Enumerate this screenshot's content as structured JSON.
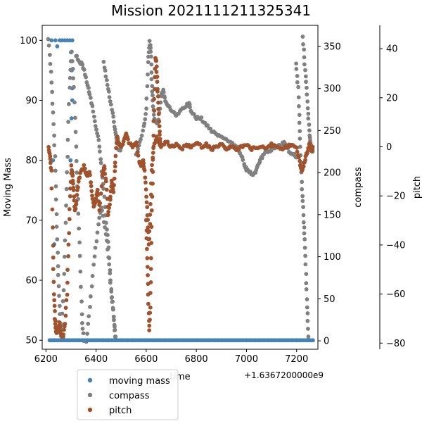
{
  "chart_data": {
    "type": "scatter",
    "title": "Mission 2021111211325341",
    "xlabel": "time",
    "x_offset_label": "+1.6367200000e9",
    "x_ticks": [
      6200,
      6400,
      6600,
      6800,
      7000,
      7200
    ],
    "xlim": [
      6185,
      7285
    ],
    "axes": {
      "moving_mass": {
        "label": "Moving Mass",
        "ylim": [
          48.5,
          102.5
        ],
        "ticks": [
          50,
          60,
          70,
          80,
          90,
          100
        ]
      },
      "compass": {
        "label": "compass",
        "ylim": [
          -10,
          375
        ],
        "ticks": [
          0,
          50,
          100,
          150,
          200,
          250,
          300,
          350
        ]
      },
      "pitch": {
        "label": "pitch",
        "ylim": [
          -82.5,
          49.5
        ],
        "ticks": [
          -80,
          -60,
          -40,
          -20,
          0,
          20,
          40
        ]
      }
    },
    "legend_placement": "below-left",
    "series": [
      {
        "name": "moving mass",
        "color": "#4682b4",
        "axis": "moving_mass",
        "points": [
          [
            6215,
            50
          ],
          [
            6222,
            100
          ],
          [
            6228,
            80
          ],
          [
            6233,
            66
          ],
          [
            6238,
            100
          ],
          [
            6245,
            99
          ],
          [
            6255,
            100
          ],
          [
            6265,
            100
          ],
          [
            6275,
            100
          ],
          [
            6285,
            100
          ],
          [
            6295,
            100
          ],
          [
            6305,
            100
          ],
          [
            6300,
            98
          ],
          [
            6303,
            95
          ],
          [
            6305,
            90
          ],
          [
            6302,
            87
          ],
          [
            6298,
            80
          ],
          [
            6306,
            78
          ],
          [
            6305,
            92
          ],
          [
            6235,
            50
          ],
          [
            6260,
            50
          ],
          [
            6290,
            50
          ],
          [
            6320,
            50
          ],
          [
            6360,
            50
          ],
          [
            6400,
            50
          ],
          [
            6450,
            50
          ],
          [
            6500,
            50
          ],
          [
            6550,
            50
          ],
          [
            6600,
            50
          ],
          [
            6650,
            50
          ],
          [
            6700,
            50
          ],
          [
            6750,
            50
          ],
          [
            6800,
            50
          ],
          [
            6850,
            50
          ],
          [
            6900,
            50
          ],
          [
            6950,
            50
          ],
          [
            7000,
            50
          ],
          [
            7050,
            50
          ],
          [
            7100,
            50
          ],
          [
            7150,
            50
          ],
          [
            7200,
            50
          ],
          [
            7240,
            50
          ],
          [
            7265,
            50
          ]
        ]
      },
      {
        "name": "compass",
        "color": "#808080",
        "axis": "compass",
        "paths": [
          [
            [
              6210,
              360
            ],
            [
              6220,
              320
            ],
            [
              6228,
              270
            ],
            [
              6236,
              220
            ],
            [
              6242,
              150
            ],
            [
              6248,
              90
            ],
            [
              6254,
              40
            ],
            [
              6260,
              5
            ],
            [
              6270,
              60
            ],
            [
              6278,
              140
            ],
            [
              6286,
              220
            ],
            [
              6294,
              300
            ],
            [
              6302,
              345
            ],
            [
              6312,
              300
            ],
            [
              6320,
              230
            ],
            [
              6328,
              170
            ],
            [
              6336,
              100
            ],
            [
              6344,
              30
            ],
            [
              6350,
              0
            ]
          ],
          [
            [
              6360,
              0
            ],
            [
              6375,
              40
            ],
            [
              6390,
              90
            ],
            [
              6405,
              130
            ],
            [
              6420,
              160
            ],
            [
              6435,
              135
            ],
            [
              6450,
              100
            ],
            [
              6460,
              60
            ],
            [
              6470,
              30
            ],
            [
              6478,
              5
            ]
          ],
          [
            [
              6320,
              340
            ],
            [
              6335,
              330
            ],
            [
              6345,
              330
            ],
            [
              6360,
              312
            ],
            [
              6372,
              295
            ],
            [
              6385,
              280
            ],
            [
              6398,
              255
            ],
            [
              6410,
              240
            ],
            [
              6420,
              210
            ],
            [
              6430,
              180
            ],
            [
              6440,
              140
            ],
            [
              6450,
              110
            ],
            [
              6460,
              60
            ],
            [
              6470,
              30
            ],
            [
              6476,
              5
            ]
          ],
          [
            [
              6430,
              330
            ],
            [
              6442,
              310
            ],
            [
              6454,
              290
            ],
            [
              6466,
              270
            ],
            [
              6475,
              250
            ],
            [
              6482,
              240
            ],
            [
              6492,
              225
            ],
            [
              6500,
              230
            ]
          ],
          [
            [
              6560,
              220
            ],
            [
              6575,
              235
            ],
            [
              6590,
              255
            ],
            [
              6600,
              275
            ],
            [
              6608,
              330
            ],
            [
              6614,
              355
            ],
            [
              6618,
              345
            ],
            [
              6622,
              310
            ],
            [
              6626,
              285
            ],
            [
              6632,
              265
            ],
            [
              6640,
              258
            ],
            [
              6650,
              262
            ],
            [
              6660,
              292
            ],
            [
              6668,
              298
            ],
            [
              6676,
              285
            ],
            [
              6690,
              278
            ],
            [
              6705,
              272
            ],
            [
              6720,
              268
            ],
            [
              6740,
              274
            ],
            [
              6760,
              280
            ],
            [
              6770,
              282
            ],
            [
              6780,
              272
            ],
            [
              6800,
              265
            ],
            [
              6820,
              264
            ],
            [
              6840,
              256
            ],
            [
              6860,
              250
            ],
            [
              6880,
              246
            ],
            [
              6900,
              242
            ],
            [
              6920,
              240
            ],
            [
              6940,
              236
            ],
            [
              6960,
              230
            ],
            [
              6975,
              224
            ],
            [
              6990,
              210
            ],
            [
              7000,
              203
            ],
            [
              7015,
              200
            ],
            [
              7030,
              198
            ],
            [
              7042,
              205
            ],
            [
              7055,
              215
            ],
            [
              7070,
              222
            ],
            [
              7090,
              226
            ],
            [
              7110,
              228
            ],
            [
              7130,
              232
            ],
            [
              7150,
              236
            ],
            [
              7170,
              226
            ],
            [
              7185,
              222
            ],
            [
              7200,
              218
            ]
          ],
          [
            [
              7198,
              330
            ],
            [
              7206,
              300
            ],
            [
              7212,
              260
            ],
            [
              7216,
              220
            ],
            [
              7222,
              180
            ],
            [
              7228,
              150
            ],
            [
              7232,
              120
            ],
            [
              7238,
              80
            ],
            [
              7242,
              40
            ],
            [
              7247,
              5
            ]
          ],
          [
            [
              7225,
              360
            ],
            [
              7232,
              330
            ],
            [
              7240,
              300
            ],
            [
              7246,
              270
            ],
            [
              7252,
              245
            ],
            [
              7258,
              232
            ],
            [
              7264,
              225
            ]
          ]
        ]
      },
      {
        "name": "pitch",
        "color": "#a0522d",
        "axis": "pitch",
        "paths": [
          [
            [
              6210,
              0
            ],
            [
              6216,
              -4
            ],
            [
              6222,
              -10
            ],
            [
              6228,
              -40
            ],
            [
              6232,
              -60
            ],
            [
              6236,
              -70
            ],
            [
              6240,
              -75
            ],
            [
              6246,
              -76
            ],
            [
              6252,
              -72
            ],
            [
              6260,
              -76
            ],
            [
              6268,
              -78
            ],
            [
              6276,
              -72
            ],
            [
              6284,
              -60
            ],
            [
              6290,
              -40
            ],
            [
              6296,
              -20
            ],
            [
              6302,
              -8
            ],
            [
              6306,
              -12
            ],
            [
              6310,
              -18
            ],
            [
              6316,
              -26
            ],
            [
              6322,
              -22
            ],
            [
              6330,
              -14
            ],
            [
              6340,
              -10
            ],
            [
              6352,
              -8
            ],
            [
              6364,
              -12
            ],
            [
              6374,
              -10
            ],
            [
              6382,
              -18
            ],
            [
              6390,
              -24
            ],
            [
              6398,
              -22
            ],
            [
              6406,
              -18
            ],
            [
              6414,
              -26
            ],
            [
              6424,
              -12
            ],
            [
              6432,
              -8
            ],
            [
              6440,
              -14
            ],
            [
              6448,
              -28
            ],
            [
              6456,
              -22
            ],
            [
              6462,
              -14
            ],
            [
              6470,
              -18
            ],
            [
              6476,
              -8
            ]
          ],
          [
            [
              6476,
              -6
            ],
            [
              6484,
              4
            ],
            [
              6495,
              0
            ],
            [
              6510,
              2
            ],
            [
              6520,
              6
            ],
            [
              6530,
              2
            ],
            [
              6545,
              0
            ],
            [
              6560,
              2
            ],
            [
              6572,
              -6
            ],
            [
              6580,
              -8
            ],
            [
              6588,
              -5
            ],
            [
              6594,
              -10
            ],
            [
              6600,
              -20
            ],
            [
              6606,
              -30
            ],
            [
              6610,
              -40
            ],
            [
              6616,
              -28
            ],
            [
              6622,
              -10
            ],
            [
              6630,
              0
            ],
            [
              6640,
              4
            ],
            [
              6650,
              2
            ],
            [
              6660,
              0
            ],
            [
              6680,
              2
            ],
            [
              6700,
              0
            ],
            [
              6720,
              1
            ],
            [
              6740,
              -1
            ],
            [
              6760,
              1
            ],
            [
              6780,
              0
            ],
            [
              6800,
              2
            ],
            [
              6820,
              0
            ],
            [
              6840,
              1
            ],
            [
              6860,
              -1
            ],
            [
              6880,
              0
            ],
            [
              6900,
              1
            ],
            [
              6920,
              -1
            ],
            [
              6940,
              0
            ],
            [
              6960,
              -1
            ],
            [
              6980,
              0
            ],
            [
              7000,
              1
            ],
            [
              7020,
              -1
            ],
            [
              7040,
              0
            ],
            [
              7060,
              0
            ],
            [
              7080,
              -1
            ],
            [
              7100,
              1
            ],
            [
              7120,
              0
            ],
            [
              7140,
              -1
            ],
            [
              7160,
              0
            ],
            [
              7180,
              1
            ],
            [
              7200,
              0
            ],
            [
              7212,
              -6
            ],
            [
              7220,
              -10
            ],
            [
              7228,
              -8
            ],
            [
              7236,
              -4
            ],
            [
              7244,
              -2
            ],
            [
              7252,
              2
            ],
            [
              7260,
              -2
            ],
            [
              7264,
              0
            ]
          ],
          [
            [
              6600,
              -30
            ],
            [
              6604,
              -45
            ],
            [
              6608,
              -60
            ],
            [
              6612,
              -75
            ],
            [
              6616,
              -65
            ],
            [
              6620,
              -45
            ],
            [
              6624,
              -20
            ],
            [
              6628,
              0
            ],
            [
              6632,
              20
            ],
            [
              6636,
              36
            ],
            [
              6640,
              35
            ],
            [
              6644,
              26
            ],
            [
              6648,
              18
            ],
            [
              6652,
              8
            ],
            [
              6656,
              2
            ]
          ]
        ]
      }
    ]
  }
}
